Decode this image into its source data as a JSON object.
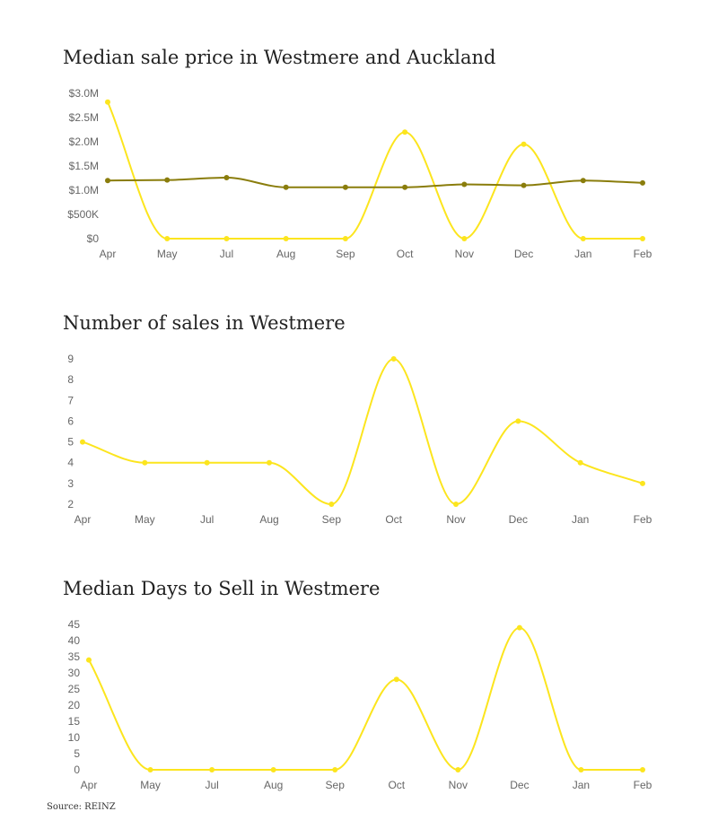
{
  "colors": {
    "westmere": "#fce51e",
    "auckland": "#8a7d0c",
    "axis_text": "#666666"
  },
  "source": "Source: REINZ",
  "chart_data": [
    {
      "type": "line",
      "title": "Median sale price in Westmere and Auckland",
      "categories": [
        "Apr",
        "May",
        "Jul",
        "Aug",
        "Sep",
        "Oct",
        "Nov",
        "Dec",
        "Jan",
        "Feb"
      ],
      "yticks": [
        "$0",
        "$500K",
        "$1.0M",
        "$1.5M",
        "$2.0M",
        "$2.5M",
        "$3.0M"
      ],
      "ylim": [
        0,
        3000000
      ],
      "xlabel": "",
      "ylabel": "",
      "grid": false,
      "series": [
        {
          "color": "#fce51e",
          "values": [
            2820000,
            0,
            0,
            0,
            0,
            2200000,
            0,
            1950000,
            0,
            0
          ]
        },
        {
          "color": "#8a7d0c",
          "values": [
            1200000,
            1210000,
            1260000,
            1060000,
            1060000,
            1060000,
            1120000,
            1100000,
            1200000,
            1150000
          ]
        }
      ]
    },
    {
      "type": "line",
      "title": "Number of sales in Westmere",
      "categories": [
        "Apr",
        "May",
        "Jul",
        "Aug",
        "Sep",
        "Oct",
        "Nov",
        "Dec",
        "Jan",
        "Feb"
      ],
      "yticks": [
        "2",
        "3",
        "4",
        "5",
        "6",
        "7",
        "8",
        "9"
      ],
      "ylim": [
        2,
        9
      ],
      "xlabel": "",
      "ylabel": "",
      "grid": false,
      "series": [
        {
          "color": "#fce51e",
          "values": [
            5,
            4,
            4,
            4,
            2,
            9,
            2,
            6,
            4,
            3
          ]
        }
      ]
    },
    {
      "type": "line",
      "title": "Median Days to Sell in Westmere",
      "categories": [
        "Apr",
        "May",
        "Jul",
        "Aug",
        "Sep",
        "Oct",
        "Nov",
        "Dec",
        "Jan",
        "Feb"
      ],
      "yticks": [
        "0",
        "5",
        "10",
        "15",
        "20",
        "25",
        "30",
        "35",
        "40",
        "45"
      ],
      "ylim": [
        0,
        45
      ],
      "xlabel": "",
      "ylabel": "",
      "grid": false,
      "series": [
        {
          "color": "#fce51e",
          "values": [
            34,
            0,
            0,
            0,
            0,
            28,
            0,
            44,
            0,
            0
          ]
        }
      ]
    }
  ]
}
